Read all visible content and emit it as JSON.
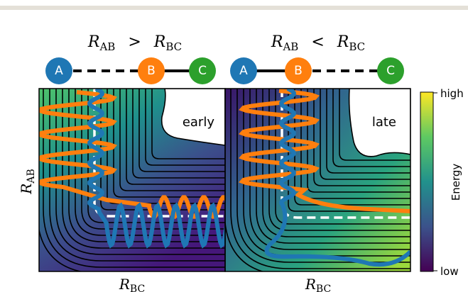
{
  "panels": [
    {
      "lhs": {
        "main": "R",
        "sub": "AB"
      },
      "relation": ">",
      "rhs": {
        "main": "R",
        "sub": "BC"
      },
      "atoms": [
        "A",
        "B",
        "C"
      ],
      "label": "early",
      "x_axis": {
        "main": "R",
        "sub": "BC"
      }
    },
    {
      "lhs": {
        "main": "R",
        "sub": "AB"
      },
      "relation": "<",
      "rhs": {
        "main": "R",
        "sub": "BC"
      },
      "atoms": [
        "A",
        "B",
        "C"
      ],
      "label": "late",
      "x_axis": {
        "main": "R",
        "sub": "BC"
      }
    }
  ],
  "y_axis": {
    "main": "R",
    "sub": "AB"
  },
  "colorbar": {
    "title": "Energy",
    "high": "high",
    "low": "low"
  }
}
